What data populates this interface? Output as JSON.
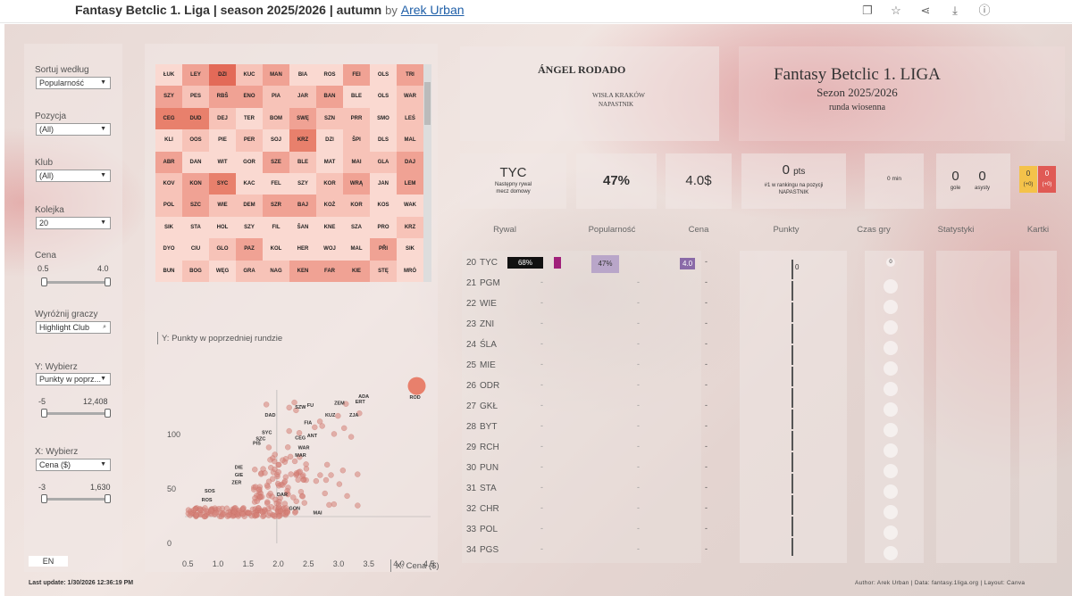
{
  "topbar": {
    "title": "Fantasy Betclic 1. Liga | season 2025/2026 | autumn",
    "by": "by",
    "author": "Arek Urban"
  },
  "icons": [
    "copy-icon",
    "star-icon",
    "share-icon",
    "download-icon",
    "info-icon"
  ],
  "filters": {
    "sort_label": "Sortuj według",
    "sort_value": "Popularność",
    "pos_label": "Pozycja",
    "pos_value": "(All)",
    "club_label": "Klub",
    "club_value": "(All)",
    "round_label": "Kolejka",
    "round_value": "20",
    "price_label": "Cena",
    "price_min": "0.5",
    "price_max": "4.0",
    "highlight_label": "Wyróżnij graczy",
    "highlight_value": "Highlight Club",
    "y_label": "Y: Wybierz",
    "y_value": "Punkty w poprz...",
    "y_min": "-5",
    "y_max": "12,408",
    "x_label": "X: Wybierz",
    "x_value": "Cena ($)",
    "x_min": "-3",
    "x_max": "1,630",
    "lang": "EN"
  },
  "heatmap": {
    "cols": 10,
    "rows": 9,
    "labels": [
      "ŁUK",
      "LEY",
      "DZI",
      "KUC",
      "MAN",
      "BIA",
      "ROS",
      "FEI",
      "OLS",
      "TRI",
      "SZY",
      "PES",
      "RBŠ",
      "ENO",
      "PIA",
      "JAR",
      "BAN",
      "BLE",
      "OLS",
      "WAR",
      "CEG",
      "DUD",
      "DEJ",
      "TER",
      "BOM",
      "SWĘ",
      "SZN",
      "PRR",
      "SMO",
      "LEŚ",
      "KLI",
      "OOS",
      "PIE",
      "PER",
      "SOJ",
      "KRZ",
      "DZI",
      "ŠPI",
      "DLS",
      "MAL",
      "ABR",
      "DAN",
      "WIT",
      "GOR",
      "SZE",
      "BLE",
      "MAT",
      "MAI",
      "GLA",
      "DAJ",
      "KOV",
      "KON",
      "SYC",
      "KAC",
      "FEL",
      "SZY",
      "KOR",
      "WRĄ",
      "JAN",
      "LEM",
      "POL",
      "SZC",
      "WIE",
      "DEM",
      "SZR",
      "BAJ",
      "KOŻ",
      "KOR",
      "KOS",
      "WAK",
      "SIK",
      "STA",
      "HOL",
      "SZY",
      "FIL",
      "ŠAN",
      "KNE",
      "SZA",
      "PRO",
      "KRZ",
      "DYO",
      "CIU",
      "GLO",
      "PAZ",
      "KOL",
      "HER",
      "WOJ",
      "MAL",
      "PŘI",
      "SIK",
      "BUN",
      "BOG",
      "WĘG",
      "GRA",
      "NAG",
      "KEN",
      "FAR",
      "KIE",
      "STĘ",
      "MRÓ"
    ],
    "levels": [
      1,
      3,
      5,
      2,
      3,
      1,
      1,
      3,
      1,
      3,
      3,
      2,
      3,
      3,
      2,
      2,
      3,
      1,
      1,
      2,
      4,
      4,
      2,
      1,
      2,
      3,
      2,
      2,
      1,
      2,
      1,
      2,
      1,
      2,
      1,
      4,
      1,
      2,
      1,
      2,
      3,
      1,
      1,
      1,
      3,
      2,
      1,
      2,
      2,
      3,
      2,
      3,
      4,
      1,
      1,
      1,
      2,
      3,
      1,
      3,
      2,
      3,
      2,
      2,
      3,
      3,
      2,
      2,
      1,
      1,
      1,
      1,
      1,
      1,
      1,
      1,
      1,
      1,
      1,
      2,
      1,
      1,
      2,
      3,
      1,
      1,
      1,
      1,
      3,
      1,
      1,
      2,
      1,
      2,
      2,
      3,
      3,
      3,
      2,
      1
    ]
  },
  "scatter": {
    "ylabel": "Y: Punkty w poprzedniej rundzie",
    "xlabel": "X: Cena ($)",
    "yticks": [
      "100",
      "50",
      "0"
    ],
    "xticks": [
      "0.5",
      "1.0",
      "1.5",
      "2.0",
      "2.5",
      "3.0",
      "3.5",
      "4.0",
      "4.5"
    ],
    "labels": [
      "ROD",
      "ADA",
      "ZEM",
      "ERT",
      "FU",
      "SZW",
      "KUZ",
      "ZJA",
      "DAD",
      "FIA",
      "SYC",
      "ANT",
      "SZC",
      "CEG",
      "PIŚ",
      "WAR",
      "MAR",
      "DIE",
      "GIE",
      "ZER",
      "SOS",
      "ROS",
      "DAR",
      "GON",
      "MAI"
    ]
  },
  "player": {
    "name": "ÁNGEL RODADO",
    "club": "WISŁA KRAKÓW",
    "position": "NAPASTNIK"
  },
  "brand": {
    "title": "Fantasy Betclic 1. LIGA",
    "season": "Sezon 2025/2026",
    "round": "runda wiosenna"
  },
  "stats": {
    "opponent": "TYC",
    "opponent_note1": "Następny rywal",
    "opponent_note2": "mecz domowy",
    "popularity": "47%",
    "price": "4.0$",
    "points": "0",
    "points_unit": "pts",
    "rank_text": "#1 w rankingu na pozycji",
    "rank_pos": "NAPASTNIK",
    "minutes": "0 min",
    "goals": "0",
    "goals_label": "gole",
    "assists": "0",
    "assists_label": "asysty",
    "yellow": "0",
    "yellow_sub": "(+0)",
    "red": "0",
    "red_sub": "(+0)"
  },
  "table": {
    "headers": [
      "Rywal",
      "Popularność",
      "Cena",
      "Punkty",
      "Czas gry",
      "Statystyki",
      "Kartki"
    ],
    "rows": [
      {
        "round": "20",
        "team": "TYC"
      },
      {
        "round": "21",
        "team": "PGM"
      },
      {
        "round": "22",
        "team": "WIE"
      },
      {
        "round": "23",
        "team": "ZNI"
      },
      {
        "round": "24",
        "team": "ŚLA"
      },
      {
        "round": "25",
        "team": "MIE"
      },
      {
        "round": "26",
        "team": "ODR"
      },
      {
        "round": "27",
        "team": "GKŁ"
      },
      {
        "round": "28",
        "team": "BYT"
      },
      {
        "round": "29",
        "team": "RCH"
      },
      {
        "round": "30",
        "team": "PUN"
      },
      {
        "round": "31",
        "team": "STA"
      },
      {
        "round": "32",
        "team": "CHR"
      },
      {
        "round": "33",
        "team": "POL"
      },
      {
        "round": "34",
        "team": "PGS"
      }
    ],
    "first_win": "68%",
    "first_pop": "47%",
    "first_price": "4.0",
    "dash": "-",
    "first_points": "0",
    "first_time": "0"
  },
  "footer": {
    "update": "Last update: 1/30/2026 12:36:19 PM",
    "credits": "Author: Arek Urban | Data: fantasy.1liga.org | Layout: Canva"
  },
  "colors": {
    "dark": "#e8806c",
    "mid": "#f0a294",
    "light": "#f7c3b8",
    "pale": "#fad9d1",
    "accent": "#8a6aa8"
  }
}
